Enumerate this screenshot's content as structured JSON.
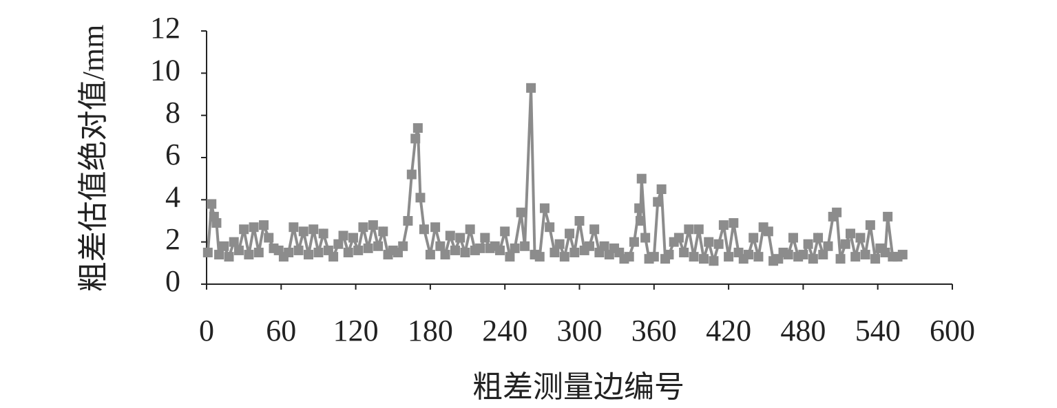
{
  "chart_data": {
    "type": "line",
    "xlabel": "粗差测量边编号",
    "ylabel": "粗差估值绝对值/mm",
    "x": [
      1,
      4,
      6,
      8,
      10,
      14,
      18,
      22,
      26,
      30,
      34,
      38,
      42,
      46,
      50,
      54,
      58,
      62,
      66,
      70,
      74,
      78,
      82,
      86,
      90,
      94,
      98,
      102,
      106,
      110,
      114,
      118,
      122,
      126,
      130,
      134,
      138,
      142,
      146,
      150,
      154,
      158,
      162,
      165,
      168,
      170,
      172,
      175,
      180,
      184,
      188,
      192,
      196,
      200,
      204,
      208,
      212,
      216,
      220,
      224,
      228,
      232,
      236,
      240,
      244,
      248,
      253,
      256,
      261,
      264,
      268,
      272,
      276,
      280,
      284,
      288,
      292,
      296,
      300,
      304,
      308,
      312,
      316,
      320,
      324,
      328,
      332,
      336,
      340,
      344,
      348,
      349,
      350,
      353,
      356,
      360,
      363,
      366,
      369,
      372,
      376,
      380,
      384,
      388,
      392,
      396,
      400,
      404,
      408,
      412,
      416,
      420,
      424,
      428,
      432,
      436,
      440,
      444,
      448,
      452,
      456,
      460,
      464,
      468,
      472,
      476,
      480,
      484,
      488,
      492,
      496,
      500,
      504,
      507,
      510,
      514,
      518,
      522,
      526,
      530,
      534,
      538,
      542,
      546,
      548,
      552,
      556,
      560
    ],
    "values": [
      1.5,
      3.8,
      3.2,
      2.9,
      1.4,
      1.8,
      1.3,
      2.0,
      1.6,
      2.6,
      1.4,
      2.7,
      1.5,
      2.8,
      2.2,
      1.7,
      1.6,
      1.3,
      1.5,
      2.7,
      1.6,
      2.5,
      1.4,
      2.6,
      1.5,
      2.4,
      1.6,
      1.3,
      1.9,
      2.3,
      1.5,
      2.2,
      1.6,
      2.7,
      1.7,
      2.8,
      1.8,
      2.5,
      1.4,
      1.6,
      1.5,
      1.8,
      3.0,
      5.2,
      6.9,
      7.4,
      4.1,
      2.6,
      1.4,
      2.7,
      1.8,
      1.4,
      2.3,
      1.6,
      2.2,
      1.5,
      2.6,
      1.6,
      1.7,
      2.2,
      1.7,
      1.8,
      1.6,
      2.5,
      1.3,
      1.7,
      3.4,
      1.8,
      9.3,
      1.4,
      1.3,
      3.6,
      2.7,
      1.5,
      1.9,
      1.3,
      2.4,
      1.5,
      3.0,
      1.6,
      1.8,
      2.6,
      1.5,
      1.8,
      1.4,
      1.7,
      1.5,
      1.2,
      1.3,
      2.0,
      3.6,
      3.0,
      5.0,
      2.2,
      1.2,
      1.3,
      3.9,
      4.5,
      1.2,
      1.4,
      2.0,
      2.2,
      1.5,
      2.6,
      1.3,
      2.6,
      1.2,
      2.0,
      1.1,
      1.9,
      2.8,
      1.3,
      2.9,
      1.5,
      1.2,
      1.4,
      2.2,
      1.3,
      2.7,
      2.5,
      1.1,
      1.2,
      1.5,
      1.4,
      2.2,
      1.3,
      1.4,
      1.9,
      1.2,
      2.2,
      1.4,
      1.8,
      3.2,
      3.4,
      1.2,
      1.9,
      2.4,
      1.3,
      2.2,
      1.4,
      2.8,
      1.2,
      1.7,
      1.5,
      3.2,
      1.3,
      1.3,
      1.4
    ],
    "color": "#8c8c8c",
    "marker": "square",
    "xlim": [
      0,
      600
    ],
    "xticks": [
      0,
      60,
      120,
      180,
      240,
      300,
      360,
      420,
      480,
      540,
      600
    ],
    "ylim": [
      0,
      12
    ],
    "yticks": [
      0,
      2,
      4,
      6,
      8,
      10,
      12
    ]
  }
}
